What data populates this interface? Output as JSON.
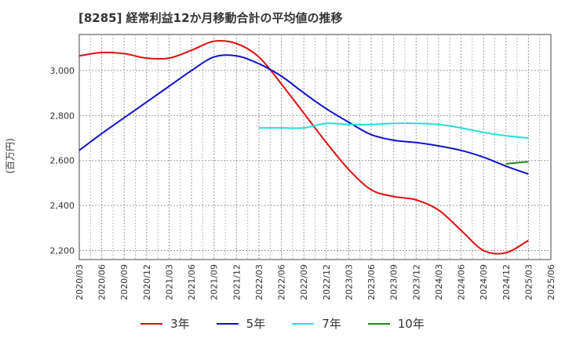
{
  "chart_data": {
    "type": "line",
    "title": "[8285]  経常利益12か月移動合計の平均値の推移",
    "ylabel": "(百万円)",
    "xlabel": "",
    "ylim": [
      2160,
      3160
    ],
    "y_ticks": [
      2200,
      2400,
      2600,
      2800,
      3000
    ],
    "y_tick_labels": [
      "2,200",
      "2,400",
      "2,600",
      "2,800",
      "3,000"
    ],
    "x_ticks": [
      "2020/03",
      "2020/06",
      "2020/09",
      "2020/12",
      "2021/03",
      "2021/06",
      "2021/09",
      "2021/12",
      "2022/03",
      "2022/06",
      "2022/09",
      "2022/12",
      "2023/03",
      "2023/06",
      "2023/09",
      "2023/12",
      "2024/03",
      "2024/06",
      "2024/09",
      "2024/12",
      "2025/03",
      "2025/06"
    ],
    "grid": true,
    "legend_position": "bottom",
    "series": [
      {
        "name": "3年",
        "color": "#dd1111",
        "points": [
          [
            "2020/03",
            3065
          ],
          [
            "2020/06",
            3080
          ],
          [
            "2020/09",
            3075
          ],
          [
            "2020/12",
            3055
          ],
          [
            "2021/03",
            3055
          ],
          [
            "2021/06",
            3090
          ],
          [
            "2021/09",
            3130
          ],
          [
            "2021/12",
            3120
          ],
          [
            "2022/03",
            3060
          ],
          [
            "2022/06",
            2940
          ],
          [
            "2022/09",
            2810
          ],
          [
            "2022/12",
            2680
          ],
          [
            "2023/03",
            2560
          ],
          [
            "2023/06",
            2470
          ],
          [
            "2023/09",
            2440
          ],
          [
            "2023/12",
            2425
          ],
          [
            "2024/03",
            2380
          ],
          [
            "2024/06",
            2290
          ],
          [
            "2024/09",
            2200
          ],
          [
            "2024/12",
            2190
          ],
          [
            "2025/03",
            2245
          ]
        ]
      },
      {
        "name": "5年",
        "color": "#1111cc",
        "points": [
          [
            "2020/03",
            2645
          ],
          [
            "2020/06",
            2720
          ],
          [
            "2020/09",
            2790
          ],
          [
            "2020/12",
            2860
          ],
          [
            "2021/03",
            2930
          ],
          [
            "2021/06",
            3000
          ],
          [
            "2021/09",
            3060
          ],
          [
            "2021/12",
            3065
          ],
          [
            "2022/03",
            3030
          ],
          [
            "2022/06",
            2975
          ],
          [
            "2022/09",
            2900
          ],
          [
            "2022/12",
            2830
          ],
          [
            "2023/03",
            2770
          ],
          [
            "2023/06",
            2715
          ],
          [
            "2023/09",
            2690
          ],
          [
            "2023/12",
            2680
          ],
          [
            "2024/03",
            2665
          ],
          [
            "2024/06",
            2645
          ],
          [
            "2024/09",
            2615
          ],
          [
            "2024/12",
            2575
          ],
          [
            "2025/03",
            2540
          ]
        ]
      },
      {
        "name": "7年",
        "color": "#22dddd",
        "points": [
          [
            "2022/03",
            2745
          ],
          [
            "2022/06",
            2745
          ],
          [
            "2022/09",
            2745
          ],
          [
            "2022/12",
            2765
          ],
          [
            "2023/03",
            2760
          ],
          [
            "2023/06",
            2760
          ],
          [
            "2023/09",
            2765
          ],
          [
            "2023/12",
            2765
          ],
          [
            "2024/03",
            2760
          ],
          [
            "2024/06",
            2745
          ],
          [
            "2024/09",
            2725
          ],
          [
            "2024/12",
            2710
          ],
          [
            "2025/03",
            2700
          ]
        ]
      },
      {
        "name": "10年",
        "color": "#228822",
        "points": [
          [
            "2024/12",
            2585
          ],
          [
            "2025/03",
            2595
          ]
        ]
      }
    ]
  }
}
